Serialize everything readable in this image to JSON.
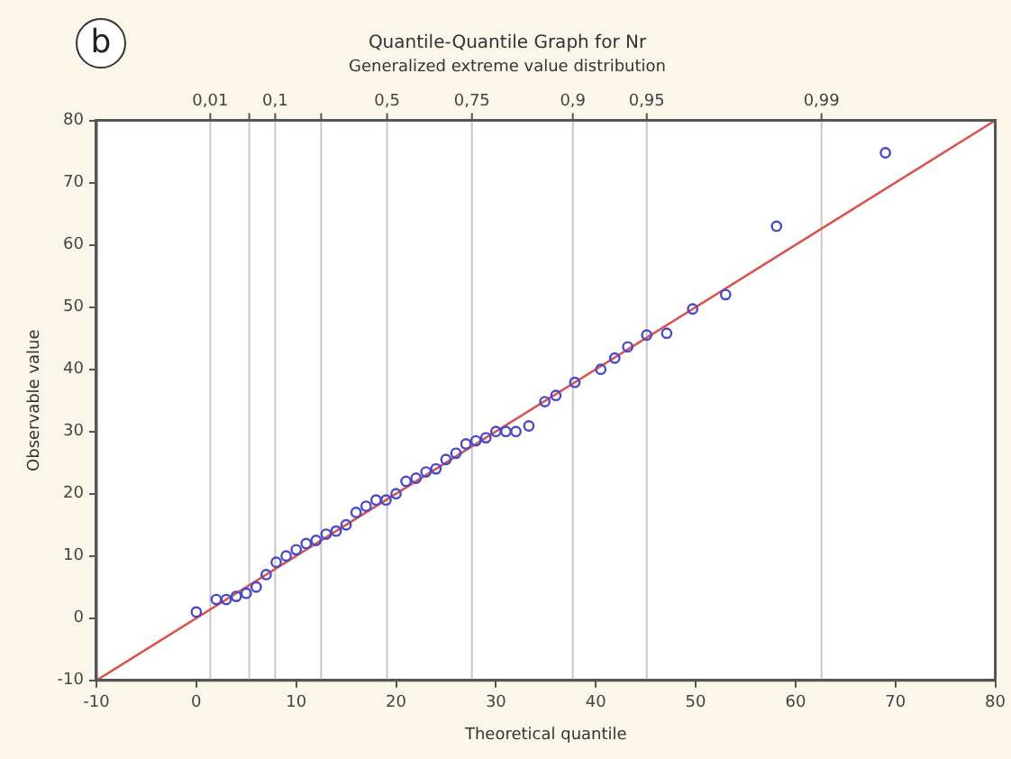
{
  "chart_data": {
    "type": "scatter",
    "title": "Quantile-Quantile Graph for Nr",
    "subtitle": "Generalized extreme value distribution",
    "xlabel": "Theoretical quantile",
    "ylabel": "Observable value",
    "annotations": [
      "b",
      {
        "text": "0,01",
        "x": 1.4,
        "y": 80
      },
      {
        "text": "0,1",
        "x": 7.9,
        "y": 80
      },
      {
        "text": "0,5",
        "x": 19.1,
        "y": 80
      },
      {
        "text": "0,75",
        "x": 27.6,
        "y": 80
      },
      {
        "text": "0,9",
        "x": 37.7,
        "y": 80
      },
      {
        "text": "0,95",
        "x": 45.1,
        "y": 80
      },
      {
        "text": "0,99",
        "x": 62.6,
        "y": 80
      }
    ],
    "xlim": [
      -10,
      80
    ],
    "xticks": [
      -10,
      0,
      10,
      20,
      30,
      40,
      50,
      60,
      70,
      80
    ],
    "ylim": [
      -10,
      80
    ],
    "yticks": [
      -10,
      0,
      10,
      20,
      30,
      40,
      50,
      60,
      70,
      80
    ],
    "ref_lines": [
      {
        "axis": "x",
        "value": 1.4,
        "color": "#c8c8c8"
      },
      {
        "axis": "x",
        "value": 5.3,
        "color": "#c8c8c8"
      },
      {
        "axis": "x",
        "value": 7.9,
        "color": "#c8c8c8"
      },
      {
        "axis": "x",
        "value": 12.5,
        "color": "#c8c8c8"
      },
      {
        "axis": "x",
        "value": 19.1,
        "color": "#c8c8c8"
      },
      {
        "axis": "x",
        "value": 27.6,
        "color": "#c8c8c8"
      },
      {
        "axis": "x",
        "value": 37.7,
        "color": "#c8c8c8"
      },
      {
        "axis": "x",
        "value": 45.1,
        "color": "#c8c8c8"
      },
      {
        "axis": "x",
        "value": 62.6,
        "color": "#c8c8c8"
      }
    ],
    "legend": false,
    "marker": "circle",
    "series": [
      {
        "color": "#4a4ac8",
        "x": [
          0,
          2,
          3,
          4,
          5,
          6,
          7,
          8,
          9,
          10,
          11,
          12,
          13,
          14,
          15,
          16,
          17,
          18,
          19,
          20,
          21,
          22,
          23,
          24,
          25,
          26,
          27,
          28,
          29,
          30,
          31,
          32,
          33.3,
          34.9,
          36,
          37.9,
          40.5,
          41.9,
          43.2,
          45.1,
          47.1,
          49.7,
          53,
          58.1,
          69
        ],
        "values": [
          1,
          3,
          3,
          3.5,
          4,
          5,
          7,
          9,
          10,
          11,
          12,
          12.5,
          13.5,
          14,
          15,
          17,
          18,
          19,
          19,
          20,
          22,
          22.5,
          23.5,
          24,
          25.5,
          26.5,
          28,
          28.5,
          29,
          30,
          30,
          30,
          30.9,
          34.8,
          35.8,
          37.9,
          40,
          41.8,
          43.6,
          45.5,
          45.8,
          49.7,
          52,
          63,
          74.8
        ]
      },
      {
        "type": "line",
        "marker": "none",
        "color": "#d9534f",
        "x": [
          -10,
          80
        ],
        "values": [
          -10,
          80
        ]
      }
    ]
  }
}
